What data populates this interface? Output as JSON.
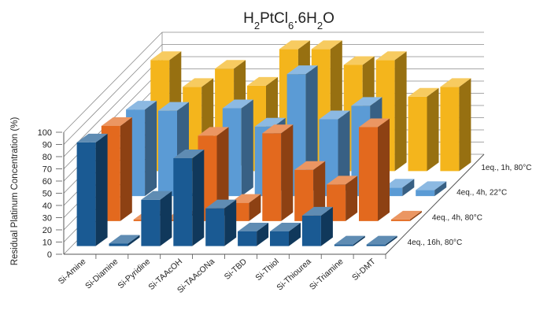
{
  "chart_data": {
    "type": "bar",
    "subtype": "3d-clustered-depth",
    "title_parts": [
      {
        "t": "H",
        "sub": false
      },
      {
        "t": "2",
        "sub": true
      },
      {
        "t": "PtCl",
        "sub": false
      },
      {
        "t": "6",
        "sub": true
      },
      {
        "t": ".6H",
        "sub": false
      },
      {
        "t": "2",
        "sub": true
      },
      {
        "t": "O",
        "sub": false
      }
    ],
    "ylabel": "Residual Platinum Concentration (%)",
    "ylim": [
      0,
      100
    ],
    "yticks": [
      0,
      10,
      20,
      30,
      40,
      50,
      60,
      70,
      80,
      90,
      100
    ],
    "grid": true,
    "categories": [
      "Si-Amine",
      "Si-Diamine",
      "Si-Pyridine",
      "Si-TAAcOH",
      "Si-TAAcONa",
      "Si-TBD",
      "Si-Thiol",
      "Si-Thiourea",
      "Si-Triamine",
      "Si-DMT"
    ],
    "series": [
      {
        "name": "4eq., 16h, 80°C",
        "color": "#1a5a93",
        "values": [
          85,
          2,
          38,
          72,
          31,
          12,
          12,
          25,
          0,
          0
        ]
      },
      {
        "name": "4eq., 4h, 80°C",
        "color": "#e3691e",
        "values": [
          78,
          0,
          0,
          70,
          15,
          72,
          42,
          30,
          77,
          0
        ]
      },
      {
        "name": "4eq., 4h, 22°C",
        "color": "#5b9bd5",
        "values": [
          71,
          70,
          0,
          72,
          57,
          100,
          63,
          74,
          7,
          5
        ]
      },
      {
        "name": "1eq., 1h, 80°C",
        "color": "#f4b51c",
        "values": [
          91,
          69,
          84,
          70,
          100,
          100,
          87,
          91,
          61,
          69
        ]
      }
    ]
  }
}
